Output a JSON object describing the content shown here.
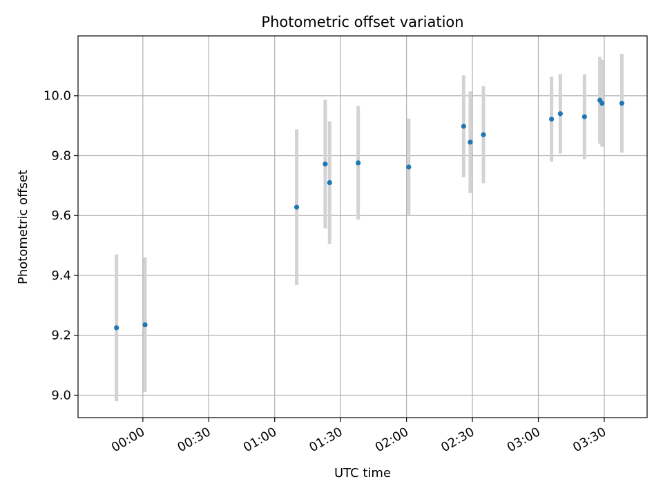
{
  "chart_data": {
    "type": "scatter",
    "title": "Photometric offset variation",
    "xlabel": "UTC time",
    "ylabel": "Photometric offset",
    "x_tick_labels": [
      "00:00",
      "00:30",
      "01:00",
      "01:30",
      "02:00",
      "02:30",
      "03:00",
      "03:30"
    ],
    "x_ticks_minutes": [
      0,
      30,
      60,
      90,
      120,
      150,
      180,
      210
    ],
    "xlim_minutes": [
      -29.5,
      229.5
    ],
    "y_tick_labels": [
      "9.0",
      "9.2",
      "9.4",
      "9.6",
      "9.8",
      "10.0"
    ],
    "y_ticks": [
      9.0,
      9.2,
      9.4,
      9.6,
      9.8,
      10.0
    ],
    "ylim": [
      8.925,
      10.2
    ],
    "grid": true,
    "point_color": "#1f77b4",
    "errorbar_color": "#d3d3d3",
    "points": [
      {
        "x": "23:48",
        "y": 9.225,
        "err": 0.245
      },
      {
        "x": "00:01",
        "y": 9.235,
        "err": 0.225
      },
      {
        "x": "01:10",
        "y": 9.628,
        "err": 0.26
      },
      {
        "x": "01:23",
        "y": 9.772,
        "err": 0.215
      },
      {
        "x": "01:25",
        "y": 9.71,
        "err": 0.205
      },
      {
        "x": "01:38",
        "y": 9.776,
        "err": 0.19
      },
      {
        "x": "02:01",
        "y": 9.762,
        "err": 0.162
      },
      {
        "x": "02:26",
        "y": 9.898,
        "err": 0.17
      },
      {
        "x": "02:29",
        "y": 9.845,
        "err": 0.17
      },
      {
        "x": "02:35",
        "y": 9.87,
        "err": 0.162
      },
      {
        "x": "03:06",
        "y": 9.922,
        "err": 0.142
      },
      {
        "x": "03:10",
        "y": 9.94,
        "err": 0.133
      },
      {
        "x": "03:21",
        "y": 9.93,
        "err": 0.142
      },
      {
        "x": "03:28",
        "y": 9.985,
        "err": 0.145
      },
      {
        "x": "03:29",
        "y": 9.975,
        "err": 0.145
      },
      {
        "x": "03:38",
        "y": 9.975,
        "err": 0.165
      }
    ]
  }
}
